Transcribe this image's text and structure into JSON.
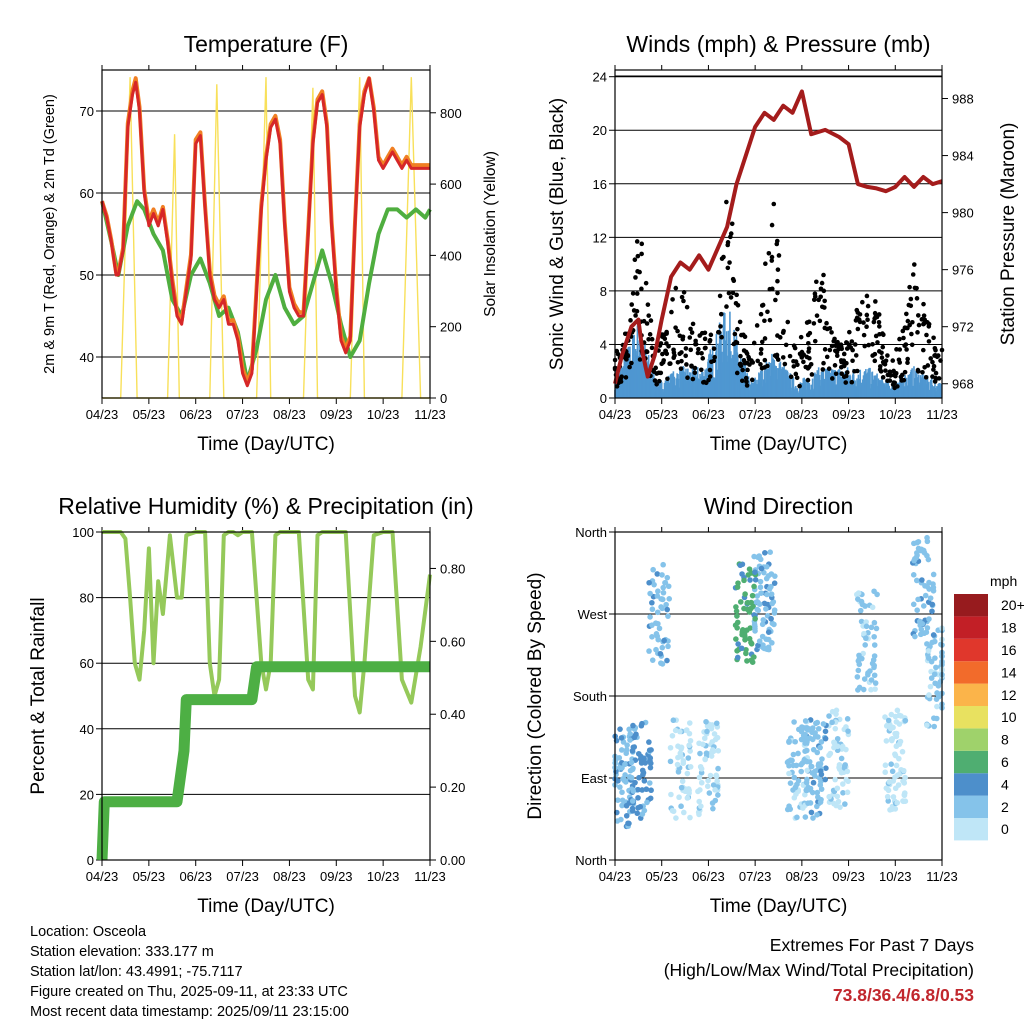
{
  "footer": {
    "location": "Location: Osceola",
    "elevation": "Station elevation: 333.177 m",
    "latlon": "Station lat/lon: 43.4991; -75.7117",
    "created": "Figure created on Thu, 2025-09-11, at 23:33 UTC",
    "recent": "Most recent data timestamp: 2025/09/11 23:15:00"
  },
  "extremes": {
    "title": "Extremes For Past 7 Days",
    "subtitle": "(High/Low/Max Wind/Total Precipitation)",
    "values": "73.8/36.4/6.8/0.53",
    "color": "#c1272d"
  },
  "chart_data": [
    {
      "type": "line",
      "title": "Temperature (F)",
      "xlabel": "Time (Day/UTC)",
      "ylabel": "2m & 9m T (Red, Orange) & 2m Td (Green)",
      "y2label": "Solar Insolation (Yellow)",
      "x_ticks": [
        "04/23",
        "05/23",
        "06/23",
        "07/23",
        "08/23",
        "09/23",
        "10/23",
        "11/23"
      ],
      "ylim": [
        35,
        75
      ],
      "y_ticks": [
        40,
        50,
        60,
        70
      ],
      "y2lim": [
        0,
        920
      ],
      "y2_ticks": [
        0,
        200,
        400,
        600,
        800
      ],
      "grid": true,
      "colors": {
        "t2m": "#d62728",
        "t9m": "#f07f23",
        "td": "#4fae3f",
        "solar": "#f8e05a"
      },
      "series": [
        {
          "name": "2m T",
          "x": [
            0,
            0.1,
            0.2,
            0.25,
            0.3,
            0.35,
            0.45,
            0.55,
            0.65,
            0.72,
            0.8,
            0.9,
            1.0,
            1.1,
            1.2,
            1.3,
            1.4,
            1.5,
            1.6,
            1.7,
            1.8,
            1.9,
            2.0,
            2.1,
            2.2,
            2.3,
            2.4,
            2.5,
            2.6,
            2.7,
            2.8,
            2.9,
            3.0,
            3.1,
            3.2,
            3.3,
            3.4,
            3.5,
            3.6,
            3.7,
            3.8,
            3.9,
            4.0,
            4.1,
            4.2,
            4.3,
            4.4,
            4.5,
            4.6,
            4.7,
            4.8,
            4.9,
            5.0,
            5.1,
            5.2,
            5.3,
            5.4,
            5.5,
            5.6,
            5.7,
            5.8,
            5.9,
            6.0,
            6.1,
            6.2,
            6.3,
            6.4,
            6.5,
            6.6,
            6.7,
            6.8,
            6.9,
            7.0
          ],
          "y": [
            59,
            57,
            54,
            52,
            50,
            50,
            53,
            68,
            72,
            73.5,
            70,
            60,
            56,
            57.5,
            56,
            58,
            54,
            49,
            45,
            44,
            48,
            52,
            66,
            67,
            58,
            50,
            47,
            46,
            47,
            44,
            44,
            42,
            38,
            36.5,
            38,
            48,
            58,
            64,
            68,
            69,
            66,
            56,
            48,
            46,
            45,
            45,
            55,
            66,
            71,
            72,
            68,
            56,
            48,
            42,
            40.5,
            42,
            56,
            68,
            72,
            74,
            70,
            64,
            63,
            64,
            65,
            64,
            63,
            64,
            63,
            63,
            63,
            63,
            63
          ]
        },
        {
          "name": "9m T",
          "x": [
            0,
            0.1,
            0.2,
            0.25,
            0.3,
            0.35,
            0.45,
            0.55,
            0.65,
            0.72,
            0.8,
            0.9,
            1.0,
            1.1,
            1.2,
            1.3,
            1.4,
            1.5,
            1.6,
            1.7,
            1.8,
            1.9,
            2.0,
            2.1,
            2.2,
            2.3,
            2.4,
            2.5,
            2.6,
            2.7,
            2.8,
            2.9,
            3.0,
            3.1,
            3.2,
            3.3,
            3.4,
            3.5,
            3.6,
            3.7,
            3.8,
            3.9,
            4.0,
            4.1,
            4.2,
            4.3,
            4.4,
            4.5,
            4.6,
            4.7,
            4.8,
            4.9,
            5.0,
            5.1,
            5.2,
            5.3,
            5.4,
            5.5,
            5.6,
            5.7,
            5.8,
            5.9,
            6.0,
            6.1,
            6.2,
            6.3,
            6.4,
            6.5,
            6.6,
            6.7,
            6.8,
            6.9,
            7.0
          ],
          "y": [
            59,
            57.2,
            54.2,
            52.2,
            50.3,
            50.3,
            53.3,
            68.5,
            72.5,
            74,
            70.5,
            60.4,
            56.5,
            58,
            56.4,
            58.3,
            54.4,
            49.5,
            45.5,
            44.4,
            48.4,
            52.5,
            66.5,
            67.4,
            58.4,
            50.5,
            47.5,
            46.4,
            47.4,
            44.4,
            44.5,
            42.5,
            38.6,
            37,
            38.5,
            48.5,
            58.5,
            64.4,
            68.4,
            69.4,
            66.5,
            56.5,
            48.5,
            46.5,
            45.5,
            45.4,
            55.5,
            66.4,
            71.4,
            72.4,
            68.4,
            56.5,
            48.5,
            42.5,
            41,
            42.5,
            56.4,
            68.4,
            72.4,
            74,
            70.4,
            64.4,
            63.4,
            64.4,
            65.4,
            64.4,
            63.4,
            64.4,
            63.4,
            63.4,
            63.4,
            63.4,
            63.4
          ]
        },
        {
          "name": "2m Td",
          "x": [
            0,
            0.2,
            0.35,
            0.55,
            0.75,
            0.9,
            1.1,
            1.3,
            1.5,
            1.7,
            1.9,
            2.1,
            2.3,
            2.5,
            2.7,
            2.9,
            3.1,
            3.3,
            3.5,
            3.7,
            3.9,
            4.1,
            4.3,
            4.5,
            4.7,
            4.9,
            5.1,
            5.3,
            5.5,
            5.7,
            5.9,
            6.1,
            6.3,
            6.5,
            6.7,
            6.9,
            7.0
          ],
          "y": [
            59,
            54,
            50,
            56,
            59,
            58,
            55,
            53,
            47,
            45,
            50,
            52,
            49,
            45,
            46,
            43,
            37,
            41,
            47,
            50,
            46,
            44,
            45,
            49,
            53,
            49,
            44,
            40,
            42,
            49,
            55,
            58,
            58,
            57,
            58,
            57,
            58
          ]
        },
        {
          "name": "Solar",
          "axis": "y2",
          "x": [
            0,
            0.4,
            0.6,
            0.75,
            0.9,
            1.1,
            1.4,
            1.55,
            1.65,
            1.8,
            2.1,
            2.3,
            2.45,
            2.6,
            2.75,
            3.1,
            3.3,
            3.5,
            3.6,
            3.75,
            4.1,
            4.3,
            4.5,
            4.6,
            4.75,
            5.1,
            5.3,
            5.5,
            5.6,
            5.75,
            6.1,
            6.4,
            6.6,
            6.8,
            7.0
          ],
          "y": [
            0,
            0,
            900,
            0,
            0,
            0,
            0,
            740,
            0,
            0,
            0,
            0,
            880,
            0,
            0,
            0,
            0,
            900,
            0,
            0,
            0,
            0,
            870,
            0,
            0,
            0,
            0,
            900,
            0,
            0,
            0,
            0,
            900,
            0,
            0
          ]
        }
      ]
    },
    {
      "type": "scatter",
      "title": "Winds (mph) & Pressure (mb)",
      "xlabel": "Time (Day/UTC)",
      "ylabel": "Sonic Wind & Gust (Blue, Black)",
      "y2label": "Station Pressure (Maroon)",
      "x_ticks": [
        "04/23",
        "05/23",
        "06/23",
        "07/23",
        "08/23",
        "09/23",
        "10/23",
        "11/23"
      ],
      "ylim": [
        0,
        24.5
      ],
      "y_ticks": [
        0,
        4,
        8,
        12,
        16,
        20,
        24
      ],
      "y2lim": [
        967,
        990
      ],
      "y2_ticks": [
        968,
        972,
        976,
        980,
        984,
        988
      ],
      "grid": true,
      "colors": {
        "wind": "#4f97d1",
        "gust": "#000000",
        "pressure": "#a41c1c"
      },
      "series": [
        {
          "name": "Sonic Wind",
          "x": [
            0.1,
            0.5,
            0.9,
            1.4,
            1.9,
            2.4,
            2.9,
            3.4,
            3.9,
            4.4,
            4.9,
            5.4,
            5.9,
            6.4,
            6.9
          ],
          "y": [
            2,
            5,
            1,
            2,
            2,
            6,
            1,
            3,
            1,
            2,
            2,
            2,
            1,
            2,
            1
          ]
        },
        {
          "name": "Gust",
          "x": [
            0.1,
            0.3,
            0.5,
            0.7,
            0.9,
            1.2,
            1.4,
            1.6,
            1.9,
            2.2,
            2.4,
            2.6,
            2.9,
            3.2,
            3.4,
            3.6,
            3.9,
            4.2,
            4.4,
            4.6,
            4.9,
            5.2,
            5.4,
            5.6,
            5.9,
            6.2,
            6.4,
            6.6,
            6.9
          ],
          "y": [
            3,
            5,
            12,
            7,
            3,
            6,
            8,
            5,
            4,
            6,
            16,
            7,
            2,
            8,
            13,
            6,
            3,
            6,
            9,
            5,
            3,
            6,
            8,
            6,
            2,
            5,
            9,
            6,
            3
          ]
        },
        {
          "name": "Pressure",
          "axis": "y2",
          "x": [
            0,
            0.15,
            0.35,
            0.5,
            0.6,
            0.7,
            0.85,
            1.0,
            1.2,
            1.4,
            1.6,
            1.8,
            2.0,
            2.2,
            2.4,
            2.6,
            2.8,
            3.0,
            3.2,
            3.4,
            3.6,
            3.8,
            4.0,
            4.2,
            4.5,
            4.8,
            5.0,
            5.2,
            5.4,
            5.6,
            5.8,
            6.0,
            6.2,
            6.4,
            6.6,
            6.8,
            7.0
          ],
          "y": [
            968,
            970,
            972,
            972.5,
            970,
            968.5,
            970,
            972.5,
            975.5,
            976.5,
            976,
            977,
            976,
            977.5,
            979,
            982,
            984,
            986,
            987,
            986.5,
            987.5,
            987,
            988.5,
            985.5,
            985.8,
            985.3,
            984.8,
            982,
            981.8,
            981.7,
            981.5,
            981.8,
            982.5,
            981.8,
            982.5,
            982,
            982.2
          ]
        }
      ]
    },
    {
      "type": "line",
      "title": "Relative Humidity (%) & Precipitation (in)",
      "xlabel": "Time (Day/UTC)",
      "ylabel": "Percent & Total Rainfall",
      "x_ticks": [
        "04/23",
        "05/23",
        "06/23",
        "07/23",
        "08/23",
        "09/23",
        "10/23",
        "11/23"
      ],
      "ylim": [
        0,
        100
      ],
      "y_ticks": [
        0,
        20,
        40,
        60,
        80,
        100
      ],
      "y2lim": [
        0,
        0.9
      ],
      "y2_ticks": [
        "0.00",
        "0.20",
        "0.40",
        "0.60",
        "0.80"
      ],
      "grid": true,
      "colors": {
        "rh": "#95c95a",
        "precip": "#4daf44"
      },
      "series": [
        {
          "name": "RH",
          "x": [
            0,
            0.3,
            0.4,
            0.5,
            0.6,
            0.7,
            0.8,
            0.9,
            1.0,
            1.1,
            1.2,
            1.3,
            1.45,
            1.6,
            1.7,
            1.8,
            2.0,
            2.2,
            2.3,
            2.4,
            2.5,
            2.6,
            2.7,
            2.8,
            2.9,
            3.0,
            3.2,
            3.4,
            3.5,
            3.6,
            3.7,
            3.8,
            4.0,
            4.2,
            4.4,
            4.5,
            4.6,
            4.7,
            4.8,
            5.0,
            5.2,
            5.4,
            5.5,
            5.6,
            5.8,
            6.0,
            6.2,
            6.4,
            6.6,
            6.8,
            7.0
          ],
          "y": [
            100,
            100,
            100,
            98,
            80,
            60,
            55,
            70,
            95,
            60,
            85,
            75,
            99,
            80,
            80,
            99,
            100,
            100,
            60,
            50,
            55,
            99,
            100,
            100,
            99,
            100,
            100,
            60,
            52,
            60,
            99,
            100,
            100,
            100,
            55,
            52,
            99,
            100,
            100,
            100,
            100,
            50,
            45,
            60,
            99,
            100,
            100,
            55,
            48,
            65,
            87
          ]
        },
        {
          "name": "Precip",
          "axis": "y2",
          "x": [
            0,
            0.05,
            1.6,
            1.75,
            1.8,
            3.2,
            3.3,
            7.0
          ],
          "y": [
            0,
            0.16,
            0.16,
            0.3,
            0.44,
            0.44,
            0.53,
            0.53
          ]
        }
      ]
    },
    {
      "type": "scatter",
      "title": "Wind Direction",
      "xlabel": "Time (Day/UTC)",
      "ylabel": "Direction (Colored By Speed)",
      "x_ticks": [
        "04/23",
        "05/23",
        "06/23",
        "07/23",
        "08/23",
        "09/23",
        "10/23",
        "11/23"
      ],
      "y_ticks": [
        "North",
        "East",
        "South",
        "West",
        "North"
      ],
      "ylim": [
        0,
        360
      ],
      "grid": true,
      "colorbar": {
        "label": "mph",
        "levels": [
          "0",
          "2",
          "4",
          "6",
          "8",
          "10",
          "12",
          "14",
          "16",
          "18",
          "20+"
        ],
        "colors": [
          "#bfe6f7",
          "#85c3ea",
          "#4d8fcb",
          "#4fae71",
          "#9fd26b",
          "#e8e160",
          "#fbb44a",
          "#f26b2b",
          "#e0372c",
          "#c21f26",
          "#971b1e"
        ]
      },
      "points": [
        {
          "x": 0.2,
          "dir": 90,
          "speed": 3
        },
        {
          "x": 0.55,
          "dir": 100,
          "speed": 4
        },
        {
          "x": 0.95,
          "dir": 270,
          "speed": 3
        },
        {
          "x": 1.4,
          "dir": 100,
          "speed": 1
        },
        {
          "x": 2.0,
          "dir": 100,
          "speed": 1
        },
        {
          "x": 2.8,
          "dir": 270,
          "speed": 6
        },
        {
          "x": 3.2,
          "dir": 285,
          "speed": 3
        },
        {
          "x": 3.9,
          "dir": 100,
          "speed": 2
        },
        {
          "x": 4.3,
          "dir": 100,
          "speed": 3
        },
        {
          "x": 4.8,
          "dir": 110,
          "speed": 1
        },
        {
          "x": 5.4,
          "dir": 240,
          "speed": 2
        },
        {
          "x": 6.0,
          "dir": 110,
          "speed": 1
        },
        {
          "x": 6.6,
          "dir": 300,
          "speed": 3
        },
        {
          "x": 6.9,
          "dir": 200,
          "speed": 2
        }
      ]
    }
  ]
}
